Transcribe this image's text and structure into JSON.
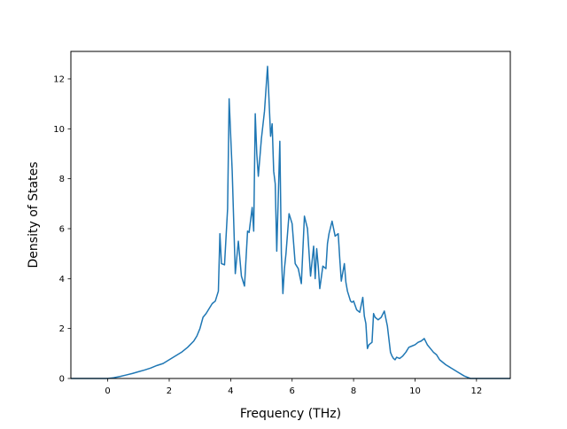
{
  "chart_data": {
    "type": "line",
    "xlabel": "Frequency (THz)",
    "ylabel": "Density of States",
    "xlim": [
      -1.2,
      13.1
    ],
    "ylim": [
      0,
      13.1
    ],
    "xticks": [
      0,
      2,
      4,
      6,
      8,
      10,
      12
    ],
    "yticks": [
      0,
      2,
      4,
      6,
      8,
      10,
      12
    ],
    "grid": false,
    "line_color": "#1f77b4",
    "series": [
      {
        "x": [
          -1.2,
          -0.6,
          0.0,
          0.2,
          0.4,
          0.6,
          0.8,
          1.0,
          1.2,
          1.4,
          1.6,
          1.8,
          2.0,
          2.2,
          2.4,
          2.6,
          2.8,
          2.9,
          3.0,
          3.1,
          3.2,
          3.3,
          3.4,
          3.5,
          3.55,
          3.6,
          3.65,
          3.7,
          3.8,
          3.9,
          3.95,
          4.05,
          4.15,
          4.25,
          4.35,
          4.45,
          4.55,
          4.6,
          4.7,
          4.75,
          4.8,
          4.85,
          4.9,
          5.0,
          5.1,
          5.2,
          5.3,
          5.35,
          5.4,
          5.45,
          5.5,
          5.6,
          5.65,
          5.7,
          5.75,
          5.8,
          5.9,
          6.0,
          6.1,
          6.2,
          6.3,
          6.4,
          6.5,
          6.6,
          6.7,
          6.75,
          6.8,
          6.85,
          6.9,
          7.0,
          7.1,
          7.15,
          7.2,
          7.3,
          7.4,
          7.5,
          7.55,
          7.6,
          7.7,
          7.75,
          7.8,
          7.9,
          7.95,
          8.0,
          8.1,
          8.2,
          8.3,
          8.35,
          8.4,
          8.45,
          8.5,
          8.55,
          8.6,
          8.65,
          8.7,
          8.8,
          8.9,
          9.0,
          9.1,
          9.2,
          9.25,
          9.3,
          9.35,
          9.4,
          9.5,
          9.6,
          9.7,
          9.8,
          9.9,
          10.0,
          10.1,
          10.2,
          10.3,
          10.4,
          10.5,
          10.6,
          10.7,
          10.8,
          11.0,
          11.2,
          11.4,
          11.6,
          11.8,
          11.85,
          11.9,
          12.0,
          12.4,
          13.1
        ],
        "y": [
          0.0,
          0.0,
          0.0,
          0.03,
          0.08,
          0.14,
          0.2,
          0.27,
          0.34,
          0.42,
          0.52,
          0.6,
          0.75,
          0.9,
          1.05,
          1.25,
          1.5,
          1.7,
          2.0,
          2.45,
          2.6,
          2.8,
          3.0,
          3.1,
          3.3,
          3.5,
          5.8,
          4.6,
          4.55,
          6.8,
          11.2,
          8.3,
          4.2,
          5.5,
          4.1,
          3.7,
          5.9,
          5.85,
          6.85,
          5.9,
          10.6,
          9.0,
          8.1,
          9.6,
          10.7,
          12.5,
          9.7,
          10.2,
          8.3,
          7.8,
          5.1,
          9.5,
          5.0,
          3.4,
          4.4,
          5.0,
          6.6,
          6.2,
          4.6,
          4.4,
          3.8,
          6.5,
          6.0,
          4.1,
          5.3,
          4.0,
          5.2,
          4.5,
          3.6,
          4.5,
          4.4,
          5.4,
          5.8,
          6.3,
          5.7,
          5.8,
          4.8,
          3.9,
          4.6,
          3.85,
          3.5,
          3.1,
          3.05,
          3.1,
          2.75,
          2.65,
          3.25,
          2.5,
          2.2,
          1.2,
          1.35,
          1.4,
          1.45,
          2.6,
          2.45,
          2.35,
          2.45,
          2.7,
          2.1,
          1.05,
          0.9,
          0.8,
          0.75,
          0.85,
          0.8,
          0.9,
          1.05,
          1.25,
          1.3,
          1.35,
          1.45,
          1.5,
          1.6,
          1.35,
          1.2,
          1.05,
          0.95,
          0.75,
          0.55,
          0.4,
          0.25,
          0.1,
          0.0,
          0.0,
          0.0,
          0.0,
          0.0,
          0.0
        ]
      }
    ]
  }
}
